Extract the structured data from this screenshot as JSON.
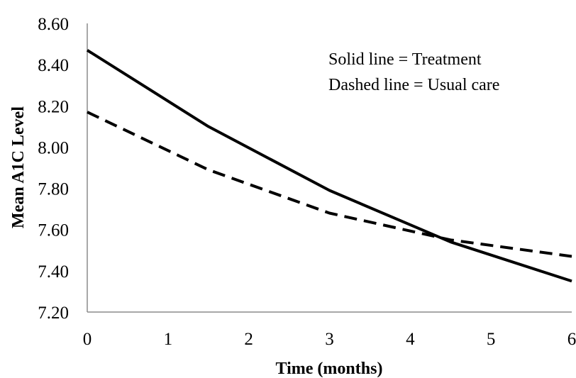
{
  "chart_data": {
    "type": "line",
    "xlabel": "Time (months)",
    "ylabel": "Mean A1C Level",
    "xlim": [
      0,
      6
    ],
    "ylim": [
      7.2,
      8.6
    ],
    "x_ticks": [
      "0",
      "1",
      "2",
      "3",
      "4",
      "5",
      "6"
    ],
    "y_ticks": [
      "8.60",
      "8.40",
      "8.20",
      "8.00",
      "7.80",
      "7.60",
      "7.40",
      "7.20"
    ],
    "grid": false,
    "legend_notes": [
      "Solid line = Treatment",
      "Dashed line = Usual care"
    ],
    "legend_placement": "top-right",
    "series": [
      {
        "style": "solid",
        "color": "#000000",
        "x": [
          0,
          1.5,
          3,
          4.5,
          6
        ],
        "y": [
          8.47,
          8.1,
          7.79,
          7.54,
          7.35
        ]
      },
      {
        "style": "dashed",
        "color": "#000000",
        "x": [
          0,
          1.5,
          3,
          4.5,
          6
        ],
        "y": [
          8.17,
          7.89,
          7.68,
          7.55,
          7.47
        ]
      }
    ]
  }
}
